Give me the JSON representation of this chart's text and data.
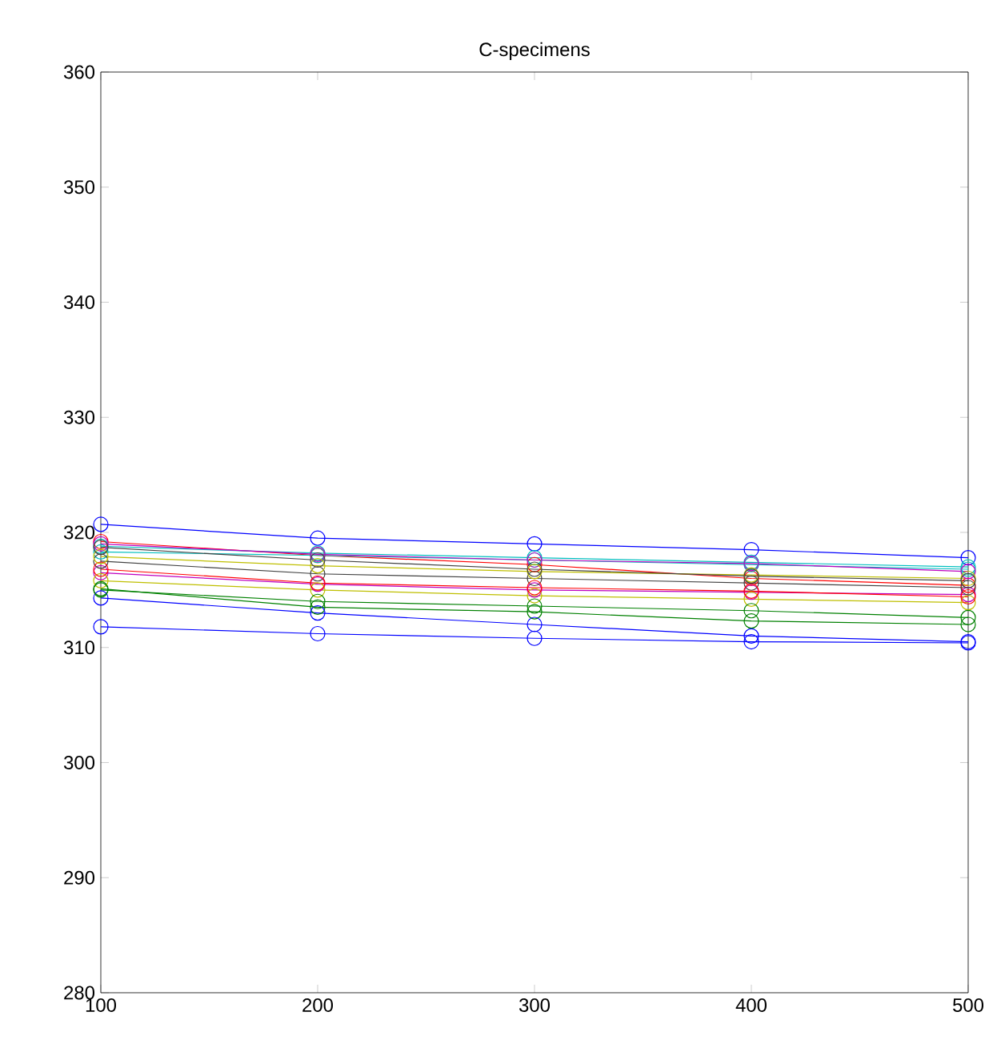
{
  "chart_data": {
    "type": "line",
    "title": "C-specimens",
    "marker": "circle",
    "line_style": "solid",
    "grid": false,
    "x": [
      100,
      200,
      300,
      400,
      500
    ],
    "xlim": [
      100,
      500
    ],
    "ylim": [
      280,
      360
    ],
    "xticks": [
      100,
      200,
      300,
      400,
      500
    ],
    "yticks": [
      280,
      290,
      300,
      310,
      320,
      330,
      340,
      350,
      360
    ],
    "series": [
      {
        "color": "#0000ff",
        "values": [
          320.7,
          319.5,
          319.0,
          318.5,
          317.8
        ]
      },
      {
        "color": "#008000",
        "values": [
          315.1,
          313.5,
          313.1,
          312.3,
          312.0
        ]
      },
      {
        "color": "#ff0000",
        "values": [
          319.2,
          318.0,
          317.2,
          316.0,
          315.4
        ]
      },
      {
        "color": "#00bfbf",
        "values": [
          318.3,
          318.0,
          317.6,
          317.2,
          316.8
        ]
      },
      {
        "color": "#bf00bf",
        "values": [
          316.5,
          315.5,
          315.0,
          314.8,
          314.6
        ]
      },
      {
        "color": "#bfbf00",
        "values": [
          315.8,
          315.0,
          314.5,
          314.2,
          313.9
        ]
      },
      {
        "color": "#404040",
        "values": [
          317.5,
          316.4,
          316.0,
          315.6,
          315.2
        ]
      },
      {
        "color": "#0000ff",
        "values": [
          314.3,
          313.0,
          312.0,
          311.0,
          310.5
        ]
      },
      {
        "color": "#008000",
        "values": [
          315.0,
          314.0,
          313.6,
          313.2,
          312.6
        ]
      },
      {
        "color": "#ff0000",
        "values": [
          316.8,
          315.6,
          315.2,
          314.9,
          314.4
        ]
      },
      {
        "color": "#00bfbf",
        "values": [
          318.8,
          318.2,
          317.8,
          317.4,
          317.0
        ]
      },
      {
        "color": "#bf00bf",
        "values": [
          319.0,
          318.1,
          317.6,
          317.3,
          316.6
        ]
      },
      {
        "color": "#bfbf00",
        "values": [
          317.9,
          317.1,
          316.6,
          316.3,
          316.0
        ]
      },
      {
        "color": "#404040",
        "values": [
          318.7,
          317.6,
          316.8,
          316.2,
          315.8
        ]
      },
      {
        "color": "#0000ff",
        "values": [
          311.8,
          311.2,
          310.8,
          310.5,
          310.4
        ]
      }
    ]
  }
}
